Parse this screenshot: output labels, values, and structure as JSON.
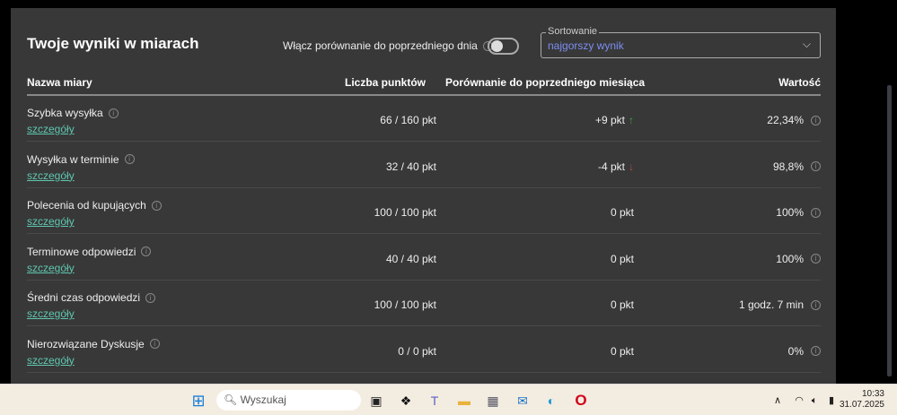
{
  "header": {
    "title": "Twoje wyniki w miarach",
    "compare_label": "Włącz porównanie do poprzedniego dnia",
    "compare_on": false,
    "sort_label": "Sortowanie",
    "sort_value": "najgorszy wynik"
  },
  "columns": [
    "Nazwa miary",
    "Liczba punktów",
    "Porównanie do poprzedniego miesiąca",
    "Wartość"
  ],
  "rows": [
    {
      "name": "Szybka wysyłka",
      "link": "szczegóły",
      "points": "66 / 160 pkt",
      "diff": "+9 pkt",
      "trend": "up",
      "value": "22,34%"
    },
    {
      "name": "Wysyłka w terminie",
      "link": "szczegóły",
      "points": "32 / 40 pkt",
      "diff": "-4 pkt",
      "trend": "down",
      "value": "98,8%"
    },
    {
      "name": "Polecenia od kupujących",
      "link": "szczegóły",
      "points": "100 / 100 pkt",
      "diff": "0 pkt",
      "trend": "",
      "value": "100%"
    },
    {
      "name": "Terminowe odpowiedzi",
      "link": "szczegóły",
      "points": "40 / 40 pkt",
      "diff": "0 pkt",
      "trend": "",
      "value": "100%"
    },
    {
      "name": "Średni czas odpowiedzi",
      "link": "szczegóły",
      "points": "100 / 100 pkt",
      "diff": "0 pkt",
      "trend": "",
      "value": "1 godz. 7 min"
    },
    {
      "name": "Nierozwiązane Dyskusje",
      "link": "szczegóły",
      "points": "0 / 0 pkt",
      "diff": "0 pkt",
      "trend": "",
      "value": "0%"
    }
  ],
  "taskbar": {
    "search_placeholder": "Wyszukaj",
    "time": "10:33",
    "date": "31.07.2025"
  },
  "colors": {
    "accent_link": "#5fc7b0",
    "sort_value": "#7d8df0",
    "up": "#3aa84a",
    "down": "#c0434b"
  }
}
